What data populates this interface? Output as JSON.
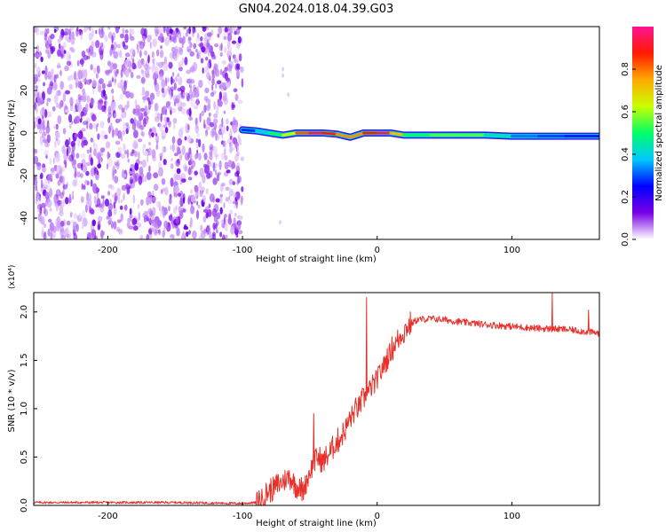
{
  "title": "GN04.2024.018.04.39.G03",
  "chart_data": [
    {
      "type": "heatmap",
      "name": "spectrogram",
      "xlabel": "Height of straight line (km)",
      "ylabel": "Frequency (Hz)",
      "xlim": [
        -255,
        165
      ],
      "ylim": [
        -50,
        50
      ],
      "xticks": [
        -200,
        -100,
        0,
        100
      ],
      "yticks": [
        -40,
        -20,
        0,
        20,
        40
      ],
      "grid": false,
      "colorbar": {
        "label": "Normalized spectral amplitude",
        "range": [
          0,
          1
        ],
        "ticks": [
          "0.0",
          "0.2",
          "0.4",
          "0.6",
          "0.8"
        ],
        "colors": [
          "#ffffff",
          "#7a00e6",
          "#0000ff",
          "#00c8ff",
          "#00ff66",
          "#c8ff00",
          "#ffaa00",
          "#ff1a00",
          "#ff1493"
        ]
      },
      "noise_region": {
        "x": [
          -255,
          -100
        ],
        "y": [
          -50,
          50
        ],
        "level": 0.15
      },
      "signal_band": [
        {
          "x": -100,
          "freq": 1.5,
          "amplitude": 0.25,
          "width": 3.0
        },
        {
          "x": -90,
          "freq": 1.0,
          "amplitude": 0.3,
          "width": 3.2
        },
        {
          "x": -80,
          "freq": 0.0,
          "amplitude": 0.45,
          "width": 3.4
        },
        {
          "x": -70,
          "freq": -1.0,
          "amplitude": 0.55,
          "width": 3.2
        },
        {
          "x": -60,
          "freq": 0.0,
          "amplitude": 0.7,
          "width": 3.0
        },
        {
          "x": -50,
          "freq": 0.0,
          "amplitude": 0.95,
          "width": 2.8
        },
        {
          "x": -40,
          "freq": 0.0,
          "amplitude": 0.95,
          "width": 2.8
        },
        {
          "x": -30,
          "freq": -0.5,
          "amplitude": 0.8,
          "width": 2.8
        },
        {
          "x": -20,
          "freq": -2.0,
          "amplitude": 0.75,
          "width": 3.0
        },
        {
          "x": -10,
          "freq": 0.0,
          "amplitude": 0.8,
          "width": 2.8
        },
        {
          "x": 0,
          "freq": 0.0,
          "amplitude": 0.95,
          "width": 2.8
        },
        {
          "x": 10,
          "freq": 0.0,
          "amplitude": 0.95,
          "width": 2.8
        },
        {
          "x": 20,
          "freq": -1.0,
          "amplitude": 0.5,
          "width": 3.0
        },
        {
          "x": 40,
          "freq": -1.0,
          "amplitude": 0.5,
          "width": 3.0
        },
        {
          "x": 60,
          "freq": -1.0,
          "amplitude": 0.6,
          "width": 3.0
        },
        {
          "x": 80,
          "freq": -1.0,
          "amplitude": 0.5,
          "width": 2.8
        },
        {
          "x": 100,
          "freq": -1.5,
          "amplitude": 0.35,
          "width": 2.6
        },
        {
          "x": 120,
          "freq": -1.5,
          "amplitude": 0.3,
          "width": 2.6
        },
        {
          "x": 140,
          "freq": -1.5,
          "amplitude": 0.28,
          "width": 2.6
        },
        {
          "x": 165,
          "freq": -1.5,
          "amplitude": 0.25,
          "width": 2.6
        }
      ]
    },
    {
      "type": "line",
      "name": "snr",
      "xlabel": "Height of straight line (km)",
      "ylabel": "SNR (10 * v/v)",
      "y_scale_label": "(x10⁴)",
      "xlim": [
        -255,
        165
      ],
      "ylim": [
        0,
        2.2
      ],
      "xticks": [
        -200,
        -100,
        0,
        100
      ],
      "yticks": [
        "0.0",
        "0.5",
        "1.0",
        "1.5",
        "2.0"
      ],
      "color": "#e8302a",
      "grid": false,
      "series": [
        {
          "x": [
            -255,
            -200,
            -150,
            -100,
            -90,
            -85,
            -80,
            -75,
            -70,
            -65,
            -60,
            -55,
            -50,
            -45,
            -40,
            -35,
            -30,
            -25,
            -20,
            -15,
            -10,
            -5,
            0,
            5,
            10,
            15,
            20,
            25,
            30,
            40,
            50,
            60,
            80,
            100,
            120,
            140,
            165
          ],
          "y": [
            0.03,
            0.03,
            0.03,
            0.02,
            0.03,
            0.08,
            0.15,
            0.2,
            0.25,
            0.3,
            0.2,
            0.15,
            0.35,
            0.5,
            0.45,
            0.55,
            0.65,
            0.75,
            0.9,
            1.0,
            1.1,
            1.2,
            1.3,
            1.45,
            1.6,
            1.7,
            1.8,
            1.88,
            1.92,
            1.93,
            1.92,
            1.9,
            1.87,
            1.85,
            1.83,
            1.82,
            1.78
          ]
        }
      ],
      "spikes": [
        {
          "x": -8,
          "y": 2.15
        },
        {
          "x": -47,
          "y": 0.95
        },
        {
          "x": 130,
          "y": 2.2
        },
        {
          "x": 157,
          "y": 2.02
        }
      ]
    }
  ]
}
